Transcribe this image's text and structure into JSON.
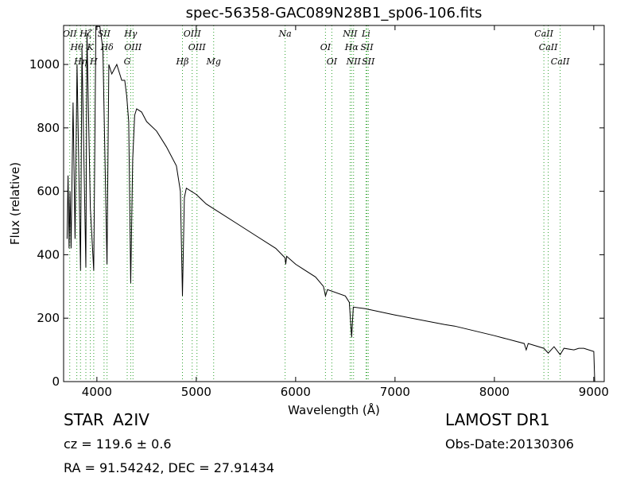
{
  "chart_data": {
    "type": "line",
    "title": "spec-56358-GAC089N28B1_sp06-106.fits",
    "x_label": "Wavelength (Å)",
    "y_label": "Flux (relative)",
    "xlim": [
      3665,
      9105
    ],
    "ylim": [
      0,
      1123
    ],
    "xticks": [
      4000,
      5000,
      6000,
      7000,
      8000,
      9000
    ],
    "yticks": [
      0,
      200,
      400,
      600,
      800,
      1000
    ],
    "x": [
      3700,
      3710,
      3720,
      3730,
      3740,
      3760,
      3780,
      3800,
      3835,
      3850,
      3889,
      3900,
      3934,
      3968,
      3990,
      4030,
      4060,
      4102,
      4120,
      4150,
      4200,
      4250,
      4280,
      4300,
      4320,
      4340,
      4360,
      4380,
      4400,
      4450,
      4500,
      4600,
      4700,
      4800,
      4840,
      4861,
      4880,
      4900,
      5000,
      5100,
      5200,
      5400,
      5600,
      5800,
      5894,
      5900,
      5910,
      6000,
      6200,
      6280,
      6300,
      6320,
      6500,
      6540,
      6563,
      6580,
      6700,
      7000,
      7500,
      7600,
      8000,
      8300,
      8320,
      8340,
      8498,
      8542,
      8600,
      8662,
      8700,
      8800,
      8850,
      8900,
      9000,
      9010
    ],
    "series": [
      {
        "name": "flux",
        "color": "#000000",
        "values": [
          450,
          650,
          420,
          600,
          420,
          880,
          450,
          1000,
          350,
          1050,
          360,
          1100,
          550,
          350,
          1120,
          1120,
          1050,
          370,
          1000,
          970,
          1000,
          950,
          950,
          900,
          820,
          310,
          700,
          840,
          860,
          850,
          820,
          790,
          740,
          680,
          600,
          270,
          580,
          610,
          590,
          560,
          540,
          500,
          460,
          420,
          390,
          370,
          395,
          370,
          330,
          300,
          270,
          290,
          270,
          250,
          140,
          235,
          230,
          210,
          180,
          175,
          145,
          120,
          100,
          120,
          105,
          90,
          110,
          85,
          105,
          100,
          105,
          105,
          95,
          0
        ]
      }
    ],
    "line_color": "#2ca02c",
    "lines": [
      {
        "label": "OII",
        "x": 3727
      },
      {
        "label": "Hθ",
        "x": 3798
      },
      {
        "label": "Hη",
        "x": 3835
      },
      {
        "label": "Hζ",
        "x": 3889
      },
      {
        "label": "K",
        "x": 3934
      },
      {
        "label": "H",
        "x": 3968
      },
      {
        "label": "SII",
        "x": 4072
      },
      {
        "label": "Hδ",
        "x": 4102
      },
      {
        "label": "G",
        "x": 4305
      },
      {
        "label": "Hγ",
        "x": 4340
      },
      {
        "label": "OIII",
        "x": 4363
      },
      {
        "label": "Hβ",
        "x": 4861
      },
      {
        "label": "OIII",
        "x": 4959
      },
      {
        "label": "OIII",
        "x": 5007
      },
      {
        "label": "Mg",
        "x": 5175
      },
      {
        "label": "Na",
        "x": 5894
      },
      {
        "label": "OI",
        "x": 6300
      },
      {
        "label": "OI",
        "x": 6364
      },
      {
        "label": "NII",
        "x": 6548
      },
      {
        "label": "Hα",
        "x": 6563
      },
      {
        "label": "NII",
        "x": 6583
      },
      {
        "label": "Li",
        "x": 6708
      },
      {
        "label": "SII",
        "x": 6717
      },
      {
        "label": "SII",
        "x": 6731
      },
      {
        "label": "CaII",
        "x": 8498
      },
      {
        "label": "CaII",
        "x": 8542
      },
      {
        "label": "CaII",
        "x": 8662
      }
    ]
  },
  "info": {
    "class": "STAR",
    "subclass": "A2IV",
    "cz": "cz = 119.6 ± 0.6",
    "coords": "RA = 91.54242, DEC = 27.91434",
    "survey": "LAMOST DR1",
    "date": "Obs-Date:20130306"
  }
}
